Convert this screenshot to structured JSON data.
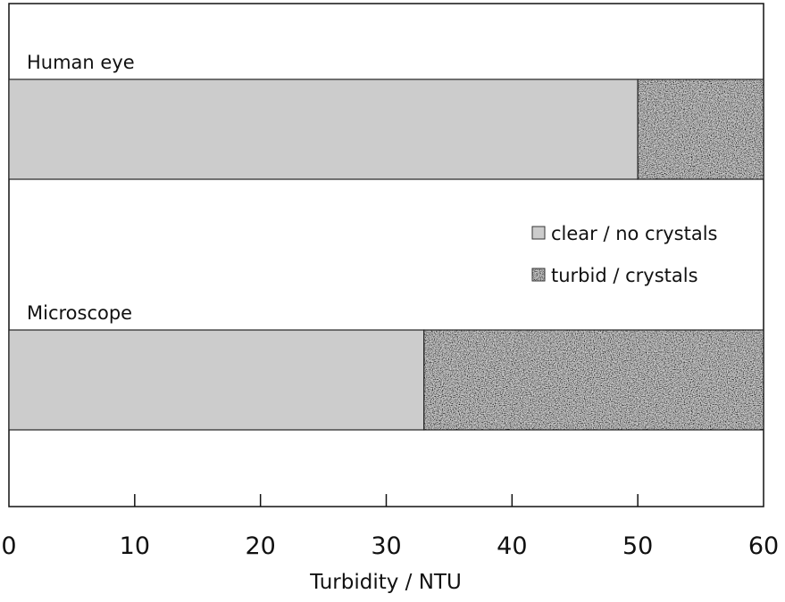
{
  "chart_data": {
    "type": "bar",
    "orientation": "horizontal",
    "stacked": true,
    "categories": [
      "Human eye",
      "Microscope"
    ],
    "series": [
      {
        "name": "clear / no crystals",
        "values": [
          50,
          33
        ],
        "color": "#cccccc",
        "pattern": "solid"
      },
      {
        "name": "turbid / crystals",
        "values": [
          10,
          27
        ],
        "color": "#808080",
        "pattern": "speckle"
      }
    ],
    "xlabel": "Turbidity / NTU",
    "ylabel": "",
    "xlim": [
      0,
      60
    ],
    "xticks": [
      0,
      10,
      20,
      30,
      40,
      50,
      60
    ],
    "grid": false,
    "legend_position": "right-middle"
  }
}
